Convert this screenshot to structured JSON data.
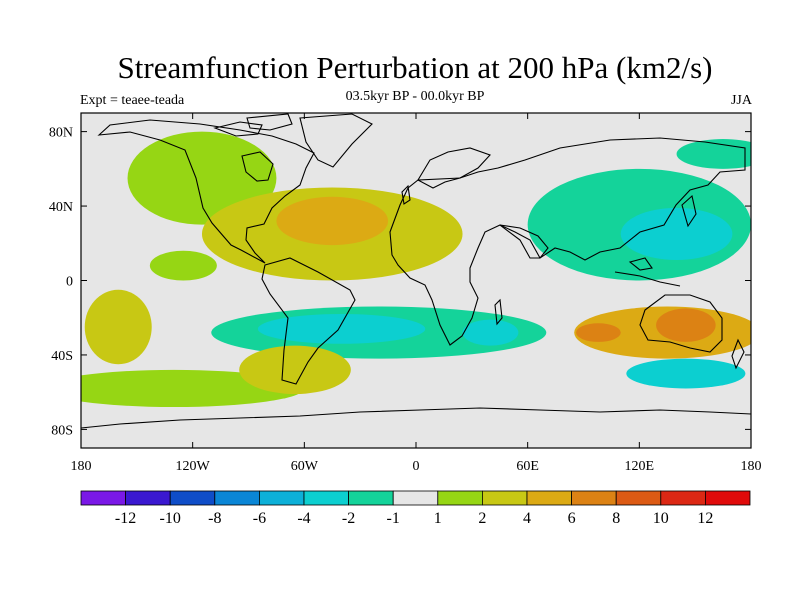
{
  "chart_data": {
    "type": "heatmap",
    "title": "Streamfunction Perturbation at 200 hPa (km2/s)",
    "subtitle": "03.5kyr BP - 00.0kyr BP",
    "left_label": "Expt = teaee-teada",
    "right_label": "JJA",
    "xlim": [
      -180,
      180
    ],
    "ylim": [
      -90,
      90
    ],
    "x_ticks": [
      {
        "value": -180,
        "label": "180"
      },
      {
        "value": -120,
        "label": "120W"
      },
      {
        "value": -60,
        "label": "60W"
      },
      {
        "value": 0,
        "label": "0"
      },
      {
        "value": 60,
        "label": "60E"
      },
      {
        "value": 120,
        "label": "120E"
      },
      {
        "value": 180,
        "label": "180"
      }
    ],
    "y_ticks": [
      {
        "value": 80,
        "label": "80N"
      },
      {
        "value": 40,
        "label": "40N"
      },
      {
        "value": 0,
        "label": "0"
      },
      {
        "value": -40,
        "label": "40S"
      },
      {
        "value": -80,
        "label": "80S"
      }
    ],
    "colorbar": {
      "levels": [
        "-12",
        "-10",
        "-8",
        "-6",
        "-4",
        "-2",
        "-1",
        "1",
        "2",
        "4",
        "6",
        "8",
        "10",
        "12"
      ],
      "colors": [
        "#7a18e6",
        "#3a18d0",
        "#0f4dc8",
        "#0a86d6",
        "#0db0d8",
        "#0ccfd0",
        "#14d39a",
        "#e6e6e6",
        "#96d614",
        "#c8c814",
        "#dcaa14",
        "#dc8214",
        "#dc5a14",
        "#dc2814",
        "#e00a0a"
      ]
    },
    "field_regions": [
      {
        "name": "N Atlantic / Americas ridge",
        "lon": -45,
        "lat": 25,
        "lon_radius": 70,
        "lat_radius": 25,
        "value": 3
      },
      {
        "name": "N Atlantic core",
        "lon": -45,
        "lat": 32,
        "lon_radius": 30,
        "lat_radius": 13,
        "value": 4.5
      },
      {
        "name": "N America arc",
        "lon": -115,
        "lat": 55,
        "lon_radius": 40,
        "lat_radius": 25,
        "value": 1.5
      },
      {
        "name": "E Pacific arm",
        "lon": -125,
        "lat": 8,
        "lon_radius": 18,
        "lat_radius": 8,
        "value": 1.5
      },
      {
        "name": "Asia-Pacific trough",
        "lon": 120,
        "lat": 30,
        "lon_radius": 60,
        "lat_radius": 30,
        "value": -2
      },
      {
        "name": "Asia-Pacific core",
        "lon": 140,
        "lat": 25,
        "lon_radius": 30,
        "lat_radius": 14,
        "value": -4
      },
      {
        "name": "NE Asia / Alaska",
        "lon": 165,
        "lat": 68,
        "lon_radius": 25,
        "lat_radius": 8,
        "value": -1.5
      },
      {
        "name": "Southern trough",
        "lon": -20,
        "lat": -28,
        "lon_radius": 90,
        "lat_radius": 14,
        "value": -2
      },
      {
        "name": "S America / S Atlantic core",
        "lon": -40,
        "lat": -26,
        "lon_radius": 45,
        "lat_radius": 8,
        "value": -4
      },
      {
        "name": "Indian Ocean core",
        "lon": 40,
        "lat": -28,
        "lon_radius": 15,
        "lat_radius": 7,
        "value": -4
      },
      {
        "name": "Australia ridge",
        "lon": 135,
        "lat": -28,
        "lon_radius": 50,
        "lat_radius": 14,
        "value": 4
      },
      {
        "name": "Australia core",
        "lon": 145,
        "lat": -24,
        "lon_radius": 16,
        "lat_radius": 9,
        "value": 6
      },
      {
        "name": "S Indian core",
        "lon": 98,
        "lat": -28,
        "lon_radius": 12,
        "lat_radius": 5,
        "value": 6
      },
      {
        "name": "Patagonia high",
        "lon": -65,
        "lat": -48,
        "lon_radius": 30,
        "lat_radius": 13,
        "value": 3
      },
      {
        "name": "S Pacific high",
        "lon": -160,
        "lat": -25,
        "lon_radius": 18,
        "lat_radius": 20,
        "value": 3
      },
      {
        "name": "Southern Ocean band",
        "lon": -130,
        "lat": -58,
        "lon_radius": 70,
        "lat_radius": 10,
        "value": 1.5
      },
      {
        "name": "SE Indian low",
        "lon": 145,
        "lat": -50,
        "lon_radius": 32,
        "lat_radius": 8,
        "value": -2.5
      }
    ]
  }
}
